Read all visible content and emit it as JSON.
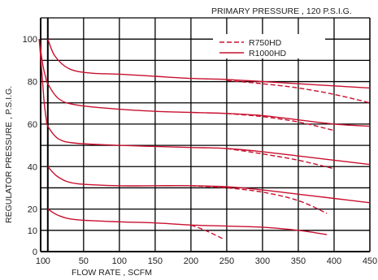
{
  "chart_data": {
    "type": "line",
    "title": "PRIMARY PRESSURE , 120 P.S.I.G.",
    "xlabel": "FLOW RATE , SCFM",
    "ylabel": "REGULATOR PRESSURE , P.S.I.G.",
    "xlim": [
      -10,
      450
    ],
    "ylim": [
      0,
      110
    ],
    "grid": true,
    "legend_position": "top-right",
    "x_ticks": [
      {
        "value": -10,
        "label": "10"
      },
      {
        "value": 0,
        "label": "0"
      },
      {
        "value": 50,
        "label": "50"
      },
      {
        "value": 100,
        "label": "100"
      },
      {
        "value": 150,
        "label": "150"
      },
      {
        "value": 200,
        "label": "200"
      },
      {
        "value": 250,
        "label": "250"
      },
      {
        "value": 300,
        "label": "300"
      },
      {
        "value": 350,
        "label": "350"
      },
      {
        "value": 400,
        "label": "400"
      },
      {
        "value": 450,
        "label": "450"
      }
    ],
    "y_ticks": [
      {
        "value": 0,
        "label": "0"
      },
      {
        "value": 10,
        "label": "10"
      },
      {
        "value": 20,
        "label": "20"
      },
      {
        "value": 40,
        "label": "40"
      },
      {
        "value": 60,
        "label": "60"
      },
      {
        "value": 80,
        "label": "80"
      },
      {
        "value": 100,
        "label": "100"
      }
    ],
    "line_color": "#c8102e",
    "legend": [
      {
        "label": "R750HD",
        "style": "dashed"
      },
      {
        "label": "R1000HD",
        "style": "solid"
      }
    ],
    "series": [
      {
        "style": "solid",
        "points": [
          [
            0,
            100
          ],
          [
            10,
            92
          ],
          [
            30,
            86
          ],
          [
            60,
            84
          ],
          [
            100,
            83.5
          ],
          [
            150,
            82.5
          ],
          [
            200,
            81.5
          ],
          [
            250,
            81
          ],
          [
            300,
            80
          ],
          [
            350,
            79
          ],
          [
            400,
            78
          ],
          [
            450,
            77
          ]
        ]
      },
      {
        "style": "solid",
        "points": [
          [
            -12,
            100
          ],
          [
            -7,
            88
          ],
          [
            -3,
            82
          ],
          [
            0,
            79
          ],
          [
            15,
            72
          ],
          [
            40,
            69
          ],
          [
            100,
            67
          ],
          [
            150,
            66
          ],
          [
            200,
            65.5
          ],
          [
            250,
            65
          ],
          [
            300,
            64
          ],
          [
            350,
            62
          ],
          [
            400,
            60
          ],
          [
            450,
            59
          ]
        ]
      },
      {
        "style": "solid",
        "points": [
          [
            -12,
            100
          ],
          [
            -8,
            83
          ],
          [
            -5,
            70
          ],
          [
            -2,
            62
          ],
          [
            0,
            59
          ],
          [
            15,
            53
          ],
          [
            40,
            51
          ],
          [
            100,
            50
          ],
          [
            150,
            49.5
          ],
          [
            200,
            49
          ],
          [
            250,
            48.5
          ],
          [
            300,
            47
          ],
          [
            350,
            45
          ],
          [
            400,
            43
          ],
          [
            450,
            41
          ]
        ]
      },
      {
        "style": "solid",
        "points": [
          [
            0,
            40
          ],
          [
            15,
            35
          ],
          [
            40,
            32
          ],
          [
            100,
            31
          ],
          [
            150,
            31
          ],
          [
            200,
            31
          ],
          [
            250,
            30.5
          ],
          [
            300,
            29
          ],
          [
            350,
            27
          ],
          [
            400,
            25
          ],
          [
            450,
            23
          ]
        ]
      },
      {
        "style": "solid",
        "points": [
          [
            0,
            20
          ],
          [
            15,
            17
          ],
          [
            40,
            15
          ],
          [
            100,
            14
          ],
          [
            150,
            13.5
          ],
          [
            200,
            12.5
          ],
          [
            250,
            12
          ],
          [
            300,
            11.5
          ],
          [
            350,
            10
          ],
          [
            390,
            8
          ]
        ]
      },
      {
        "style": "dashed",
        "points": [
          [
            250,
            80.5
          ],
          [
            300,
            79
          ],
          [
            350,
            77
          ],
          [
            400,
            74
          ],
          [
            450,
            70
          ]
        ]
      },
      {
        "style": "dashed",
        "points": [
          [
            250,
            65
          ],
          [
            300,
            63.5
          ],
          [
            350,
            61
          ],
          [
            400,
            57
          ]
        ]
      },
      {
        "style": "dashed",
        "points": [
          [
            250,
            48.5
          ],
          [
            300,
            46
          ],
          [
            350,
            43
          ],
          [
            400,
            39
          ]
        ]
      },
      {
        "style": "dashed",
        "points": [
          [
            200,
            31
          ],
          [
            250,
            30
          ],
          [
            300,
            28
          ],
          [
            350,
            24
          ],
          [
            390,
            18
          ]
        ]
      },
      {
        "style": "dashed",
        "points": [
          [
            200,
            12.5
          ],
          [
            220,
            10
          ],
          [
            245,
            6
          ]
        ]
      }
    ]
  }
}
